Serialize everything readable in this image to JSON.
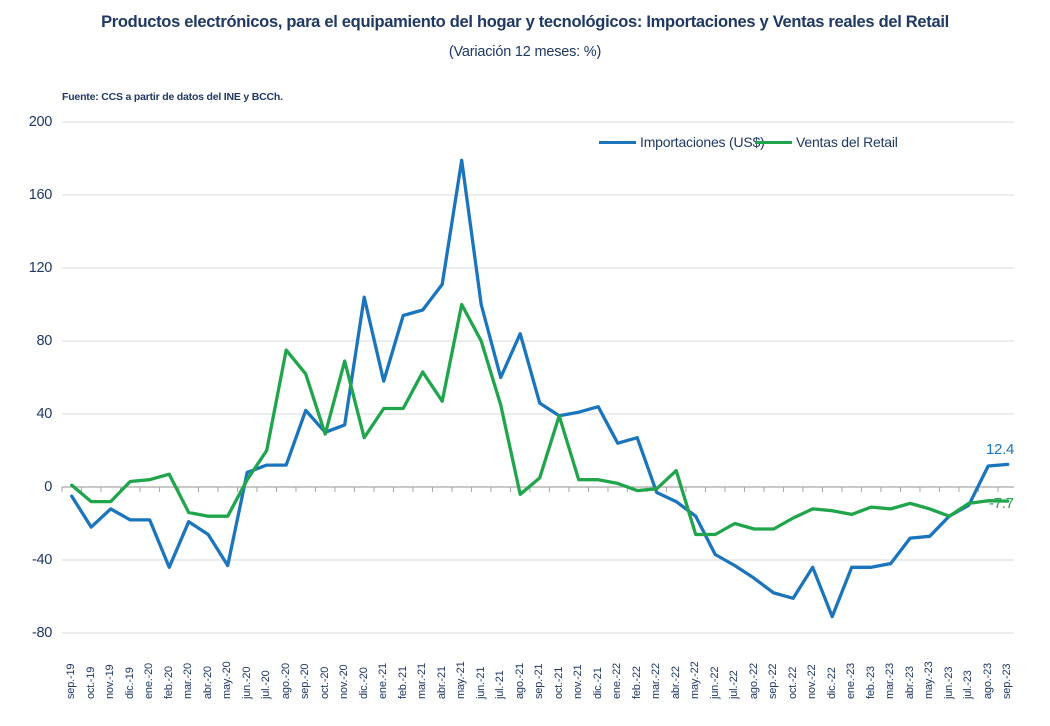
{
  "title": "Productos electrónicos, para el equipamiento del hogar y tecnológicos: Importaciones y Ventas reales del Retail",
  "subtitle": "(Variación 12 meses: %)",
  "source_note": "Fuente: CCS a partir de datos del INE y BCCh.",
  "legend": [
    {
      "label": "Importaciones (US$)",
      "color": "#1B75BC"
    },
    {
      "label": "Ventas del Retail",
      "color": "#21A54C"
    }
  ],
  "end_labels": {
    "importaciones": "12.4",
    "ventas": "-7.7"
  },
  "colors": {
    "importaciones_line": "#1B75BC",
    "ventas_line": "#21A54C",
    "text": "#1F3864",
    "gridline": "#D9D9D9",
    "zero_axis": "#A6A6A6"
  },
  "chart_data": {
    "type": "line",
    "categories": [
      "sep.-19",
      "oct.-19",
      "nov.-19",
      "dic.-19",
      "ene.-20",
      "feb.-20",
      "mar.-20",
      "abr.-20",
      "may.-20",
      "jun.-20",
      "jul.-20",
      "ago.-20",
      "sep.-20",
      "oct.-20",
      "nov.-20",
      "dic.-20",
      "ene.-21",
      "feb.-21",
      "mar.-21",
      "abr.-21",
      "may.-21",
      "jun.-21",
      "jul.-21",
      "ago.-21",
      "sep.-21",
      "oct.-21",
      "nov.-21",
      "dic.-21",
      "ene.-22",
      "feb.-22",
      "mar.-22",
      "abr.-22",
      "may.-22",
      "jun.-22",
      "jul.-22",
      "ago.-22",
      "sep.-22",
      "oct.-22",
      "nov.-22",
      "dic.-22",
      "ene.-23",
      "feb.-23",
      "mar.-23",
      "abr.-23",
      "may.-23",
      "jun.-23",
      "jul.-23",
      "ago.-23",
      "sep.-23"
    ],
    "series": [
      {
        "name": "Importaciones (US$)",
        "color": "#1B75BC",
        "values": [
          -5,
          -22,
          -12,
          -18,
          -18,
          -44,
          -19,
          -26,
          -43,
          8,
          12,
          12,
          42,
          30,
          34,
          104,
          58,
          94,
          97,
          111,
          179,
          100,
          60,
          84,
          46,
          39,
          41,
          44,
          24,
          27,
          -3,
          -8,
          -16,
          -37,
          -43,
          -50,
          -58,
          -61,
          -44,
          -71,
          -44,
          -44,
          -42,
          -28,
          -27,
          -16,
          -10,
          11.5,
          12.4
        ]
      },
      {
        "name": "Ventas del Retail",
        "color": "#21A54C",
        "values": [
          1,
          -8,
          -8,
          3,
          4,
          7,
          -14,
          -16,
          -16,
          4,
          20,
          75,
          62,
          29,
          69,
          27,
          43,
          43,
          63,
          47,
          100,
          80,
          45,
          -4,
          5,
          39,
          4,
          4,
          2,
          -2,
          -1,
          9,
          -26,
          -26,
          -20,
          -23,
          -23,
          -17,
          -12,
          -13,
          -15,
          -11,
          -12,
          -9,
          -12,
          -16,
          -9,
          -7.5,
          -7.7
        ]
      }
    ],
    "title": "Productos electrónicos, para el equipamiento del hogar y tecnológicos: Importaciones y Ventas reales del Retail (Variación 12 meses: %)",
    "xlabel": "",
    "ylabel": "",
    "ylim": [
      -80,
      200
    ],
    "yticks": [
      200,
      160,
      120,
      80,
      40,
      0,
      -40,
      -80
    ],
    "grid": true,
    "legend_position": "top-right-inside",
    "last_point_labels": {
      "Importaciones (US$)": 12.4,
      "Ventas del Retail": -7.7
    }
  }
}
